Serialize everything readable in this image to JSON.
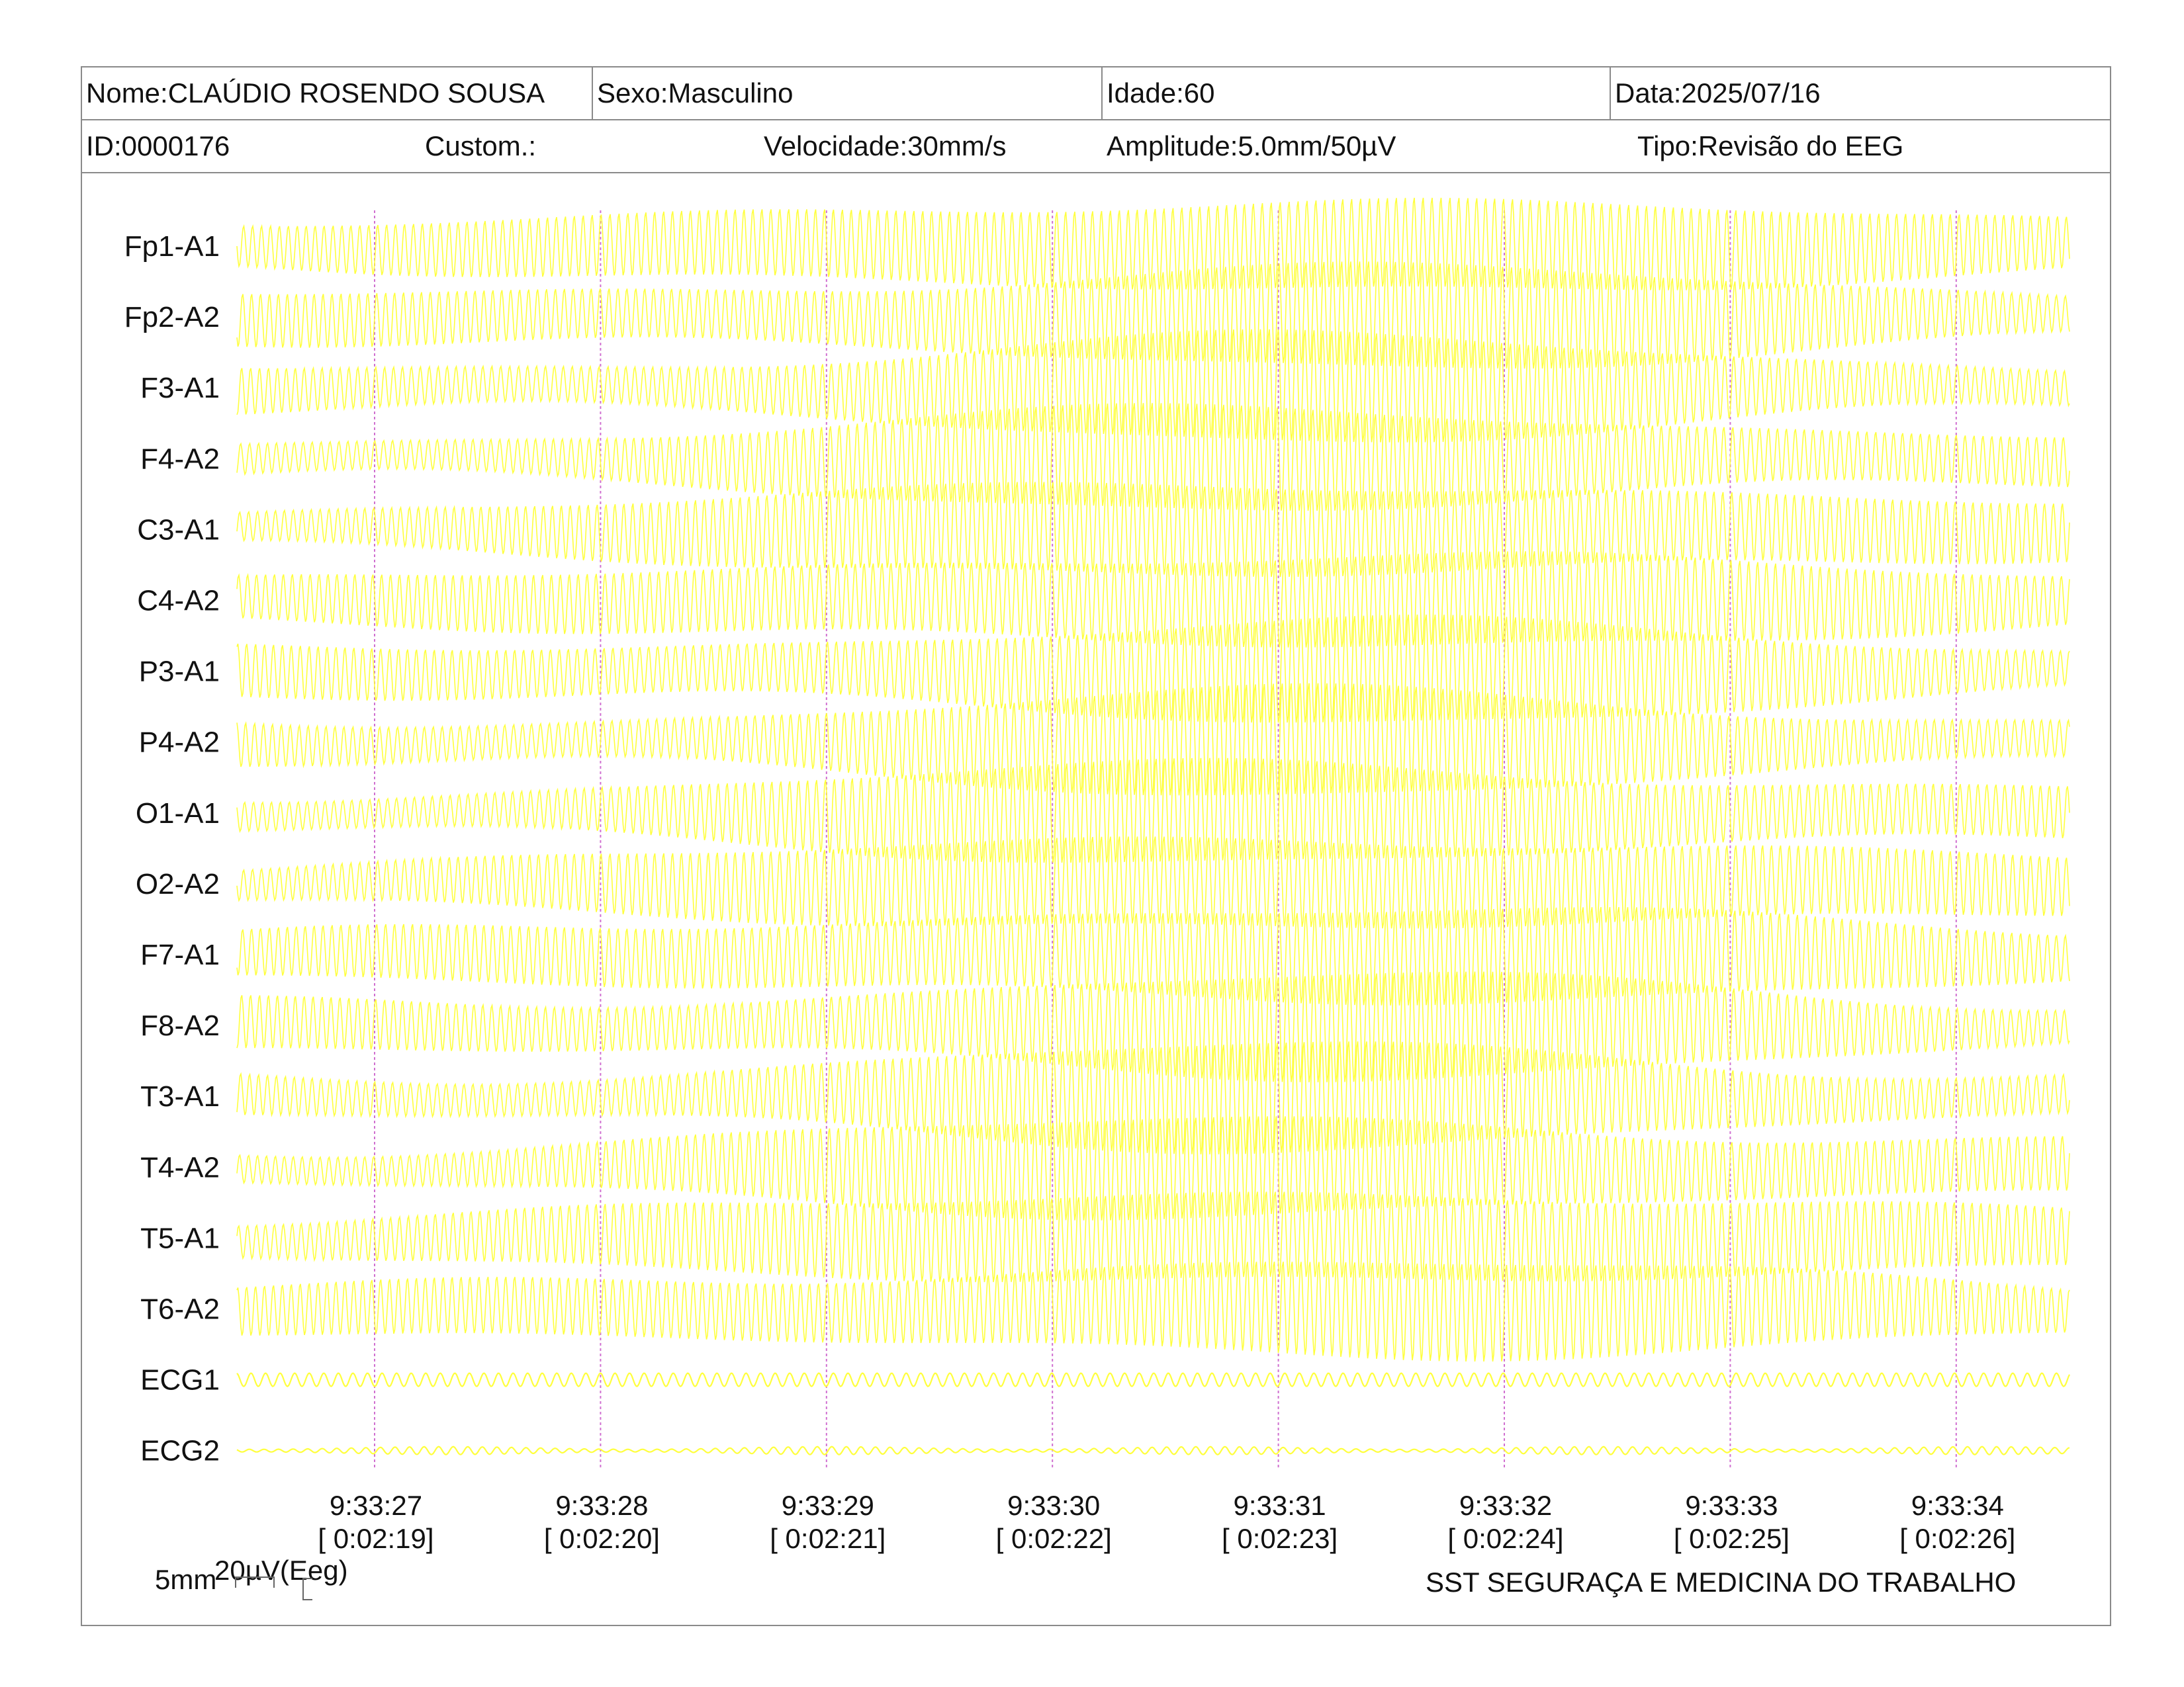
{
  "header": {
    "name": "Nome:CLAÚDIO ROSENDO SOUSA",
    "sex": "Sexo:Masculino",
    "age": "Idade:60",
    "date": "Data:2025/07/16",
    "id": "ID:0000176",
    "custom": "Custom.:",
    "speed": "Velocidade:30mm/s",
    "amplitude": "Amplitude:5.0mm/50µV",
    "type": "Tipo:Revisão do EEG"
  },
  "chart_data": {
    "type": "line",
    "channels": [
      "Fp1-A1",
      "Fp2-A2",
      "F3-A1",
      "F4-A2",
      "C3-A1",
      "C4-A2",
      "P3-A1",
      "P4-A2",
      "O1-A1",
      "O2-A2",
      "F7-A1",
      "F8-A2",
      "T3-A1",
      "T4-A2",
      "T5-A1",
      "T6-A2",
      "ECG1",
      "ECG2"
    ],
    "x_ticks": [
      {
        "time": "9:33:27",
        "elapsed": "[ 0:02:19]"
      },
      {
        "time": "9:33:28",
        "elapsed": "[ 0:02:20]"
      },
      {
        "time": "9:33:29",
        "elapsed": "[ 0:02:21]"
      },
      {
        "time": "9:33:30",
        "elapsed": "[ 0:02:22]"
      },
      {
        "time": "9:33:31",
        "elapsed": "[ 0:02:23]"
      },
      {
        "time": "9:33:32",
        "elapsed": "[ 0:02:24]"
      },
      {
        "time": "9:33:33",
        "elapsed": "[ 0:02:25]"
      },
      {
        "time": "9:33:34",
        "elapsed": "[ 0:02:26]"
      }
    ],
    "x_range_seconds": [
      -0.6,
      7.5
    ],
    "grid": "vertical-second-markers",
    "trace_color": "#ffff33",
    "marker_color": "#d070d0"
  },
  "footer": {
    "scale_time": "5mm",
    "scale_amp": "20µV(Eeg)",
    "institution": "SST SEGURAÇA E MEDICINA DO TRABALHO"
  }
}
